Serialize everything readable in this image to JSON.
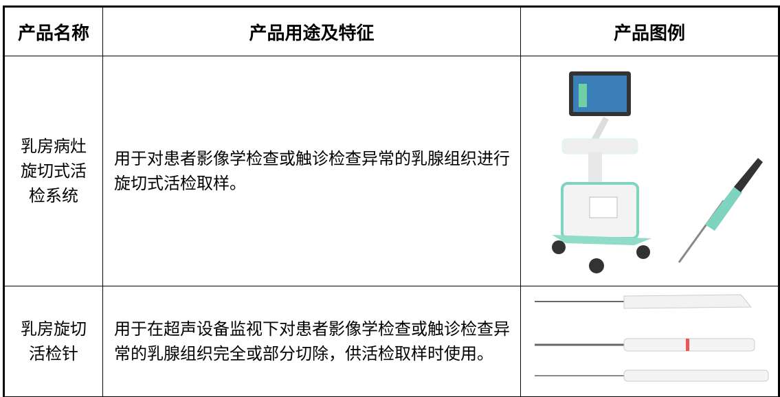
{
  "table": {
    "header": [
      "产品名称",
      "产品用途及特征",
      "产品图例"
    ],
    "rows": [
      [
        "乳房病灶旋切式活检系统",
        "用于对患者影像学检查或触诊检查异常的乳腺组织进行旋切式活检取样。"
      ],
      [
        "乳房旋切活检针",
        "用于在超声设备监视下对患者影像学检查或触诊检查异常的乳腺组织完全或部分切除，供活检取样时使用。"
      ]
    ]
  }
}
